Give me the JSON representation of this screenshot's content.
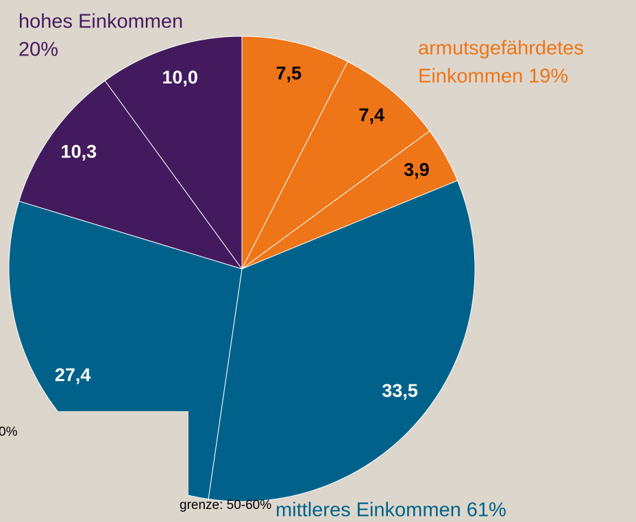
{
  "chart_data": {
    "type": "pie",
    "categories": [
      null,
      null,
      null,
      null,
      null,
      null,
      null
    ],
    "values": [
      7.5,
      7.4,
      3.9,
      33.5,
      27.4,
      10.3,
      10.0
    ],
    "value_labels": [
      "7,5",
      "7,4",
      "3,9",
      "33,5",
      "27,4",
      "10,3",
      "10,0"
    ],
    "colors": [
      "#ee7518",
      "#ee7518",
      "#ee7518",
      "#00628a",
      "#00628a",
      "#441a5e",
      "#441a5e"
    ],
    "label_colors": [
      "#000000",
      "#000000",
      "#000000",
      "#ffffff",
      "#ffffff",
      "#ffffff",
      "#ffffff"
    ],
    "groups": [
      {
        "lines": [
          "armutsgefährdetes",
          "Einkommen 19%"
        ],
        "color": "#ee7518"
      },
      {
        "lines": [
          "mittleres Einkommen 61%"
        ],
        "color": "#00628a"
      },
      {
        "lines": [
          "hohes Einkommen",
          "20%"
        ],
        "color": "#441a5e"
      }
    ],
    "annotations": [
      "0%",
      "grenze: 50-60%"
    ]
  }
}
